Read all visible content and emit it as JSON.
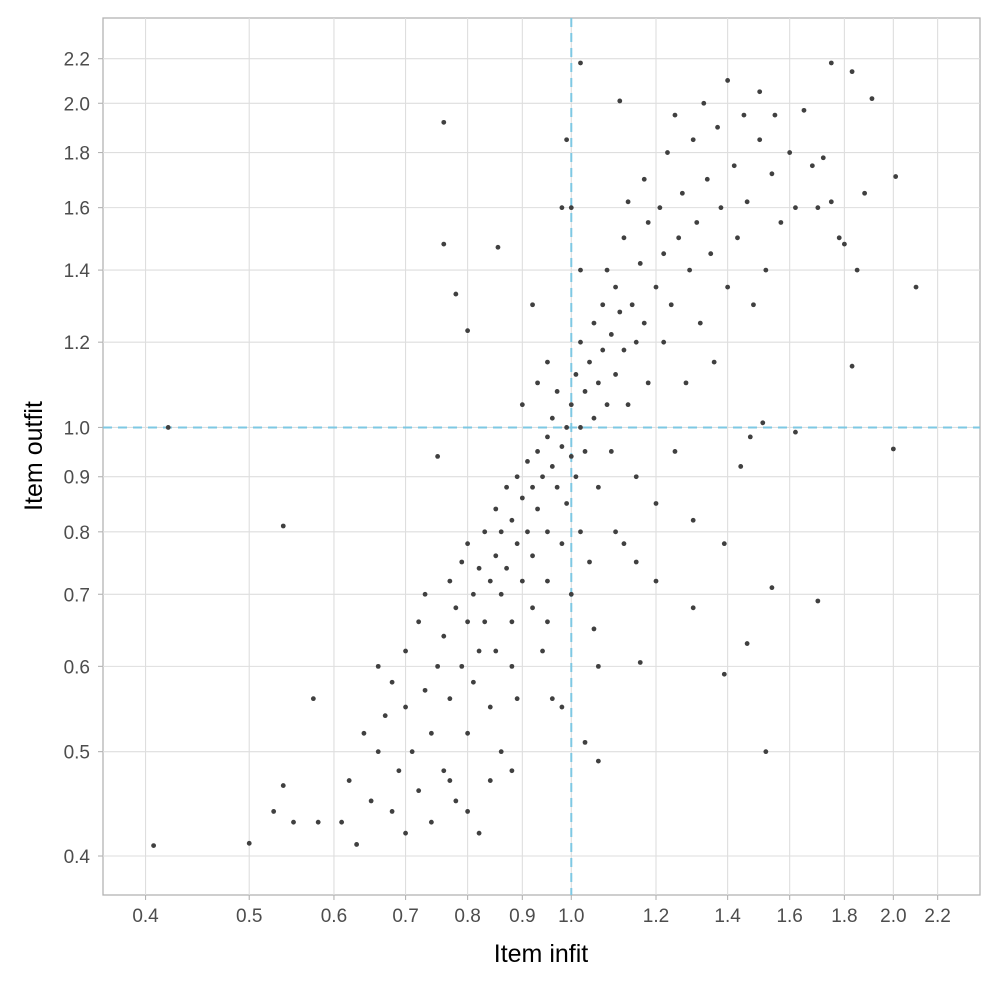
{
  "chart_data": {
    "type": "scatter",
    "title": "",
    "xlabel": "Item infit",
    "ylabel": "Item outfit",
    "x_scale": "log",
    "y_scale": "log",
    "xlim": [
      0.365,
      2.41
    ],
    "ylim": [
      0.368,
      2.4
    ],
    "x_ticks": [
      "0.4",
      "0.5",
      "0.6",
      "0.7",
      "0.8",
      "0.9",
      "1.0",
      "1.2",
      "1.4",
      "1.6",
      "1.8",
      "2.0",
      "2.2"
    ],
    "y_ticks": [
      "0.4",
      "0.5",
      "0.6",
      "0.7",
      "0.8",
      "0.9",
      "1.0",
      "1.2",
      "1.4",
      "1.6",
      "1.8",
      "2.0",
      "2.2"
    ],
    "grid": true,
    "reference_lines": {
      "x": 1.0,
      "y": 1.0,
      "style": "dashed",
      "color": "#7ec8e3"
    },
    "point_color": "#404040",
    "points": [
      [
        0.407,
        0.409
      ],
      [
        0.5,
        0.411
      ],
      [
        0.42,
        1.0
      ],
      [
        0.538,
        0.81
      ],
      [
        0.527,
        0.44
      ],
      [
        0.538,
        0.465
      ],
      [
        0.55,
        0.43
      ],
      [
        0.574,
        0.56
      ],
      [
        0.58,
        0.43
      ],
      [
        0.76,
        1.92
      ],
      [
        0.76,
        1.48
      ],
      [
        0.854,
        1.47
      ],
      [
        0.78,
        1.33
      ],
      [
        0.8,
        1.23
      ],
      [
        1.02,
        2.18
      ],
      [
        1.11,
        2.01
      ],
      [
        1.75,
        2.18
      ],
      [
        1.83,
        2.14
      ],
      [
        1.91,
        2.02
      ],
      [
        2.01,
        1.71
      ],
      [
        2.1,
        1.35
      ],
      [
        2.0,
        0.955
      ],
      [
        1.83,
        1.14
      ],
      [
        1.7,
        0.69
      ],
      [
        1.52,
        0.5
      ],
      [
        1.62,
        0.99
      ],
      [
        1.54,
        0.71
      ],
      [
        1.46,
        0.63
      ],
      [
        1.39,
        0.59
      ],
      [
        1.16,
        0.605
      ],
      [
        1.06,
        0.49
      ],
      [
        1.03,
        0.51
      ],
      [
        1.51,
        1.01
      ],
      [
        1.47,
        0.98
      ],
      [
        0.61,
        0.43
      ],
      [
        0.62,
        0.47
      ],
      [
        0.63,
        0.41
      ],
      [
        0.64,
        0.52
      ],
      [
        0.65,
        0.45
      ],
      [
        0.66,
        0.5
      ],
      [
        0.66,
        0.6
      ],
      [
        0.67,
        0.54
      ],
      [
        0.68,
        0.44
      ],
      [
        0.68,
        0.58
      ],
      [
        0.69,
        0.48
      ],
      [
        0.7,
        0.42
      ],
      [
        0.7,
        0.55
      ],
      [
        0.7,
        0.62
      ],
      [
        0.71,
        0.5
      ],
      [
        0.72,
        0.46
      ],
      [
        0.72,
        0.66
      ],
      [
        0.73,
        0.57
      ],
      [
        0.73,
        0.7
      ],
      [
        0.74,
        0.52
      ],
      [
        0.74,
        0.43
      ],
      [
        0.75,
        0.6
      ],
      [
        0.75,
        0.94
      ],
      [
        0.76,
        0.64
      ],
      [
        0.76,
        0.48
      ],
      [
        0.77,
        0.72
      ],
      [
        0.77,
        0.56
      ],
      [
        0.78,
        0.68
      ],
      [
        0.78,
        0.45
      ],
      [
        0.79,
        0.6
      ],
      [
        0.79,
        0.75
      ],
      [
        0.8,
        0.52
      ],
      [
        0.8,
        0.66
      ],
      [
        0.8,
        0.78
      ],
      [
        0.81,
        0.7
      ],
      [
        0.81,
        0.58
      ],
      [
        0.82,
        0.62
      ],
      [
        0.82,
        0.74
      ],
      [
        0.82,
        0.42
      ],
      [
        0.83,
        0.8
      ],
      [
        0.83,
        0.66
      ],
      [
        0.84,
        0.72
      ],
      [
        0.84,
        0.55
      ],
      [
        0.85,
        0.76
      ],
      [
        0.85,
        0.84
      ],
      [
        0.85,
        0.62
      ],
      [
        0.86,
        0.7
      ],
      [
        0.86,
        0.8
      ],
      [
        0.86,
        0.5
      ],
      [
        0.87,
        0.88
      ],
      [
        0.87,
        0.74
      ],
      [
        0.88,
        0.82
      ],
      [
        0.88,
        0.66
      ],
      [
        0.88,
        0.6
      ],
      [
        0.89,
        0.78
      ],
      [
        0.89,
        0.9
      ],
      [
        0.89,
        0.56
      ],
      [
        0.9,
        0.86
      ],
      [
        0.9,
        0.72
      ],
      [
        0.9,
        1.05
      ],
      [
        0.91,
        0.8
      ],
      [
        0.91,
        0.93
      ],
      [
        0.92,
        0.88
      ],
      [
        0.92,
        0.68
      ],
      [
        0.92,
        0.76
      ],
      [
        0.93,
        0.95
      ],
      [
        0.93,
        0.84
      ],
      [
        0.93,
        1.1
      ],
      [
        0.94,
        0.9
      ],
      [
        0.94,
        0.62
      ],
      [
        0.95,
        0.98
      ],
      [
        0.95,
        0.8
      ],
      [
        0.95,
        0.72
      ],
      [
        0.96,
        0.92
      ],
      [
        0.96,
        1.02
      ],
      [
        0.96,
        0.56
      ],
      [
        0.97,
        0.88
      ],
      [
        0.97,
        1.08
      ],
      [
        0.98,
        0.96
      ],
      [
        0.98,
        0.78
      ],
      [
        0.98,
        1.6
      ],
      [
        0.99,
        1.0
      ],
      [
        0.99,
        0.85
      ],
      [
        0.99,
        1.85
      ],
      [
        1.0,
        0.94
      ],
      [
        1.0,
        1.05
      ],
      [
        1.0,
        0.7
      ],
      [
        1.01,
        1.12
      ],
      [
        1.01,
        0.9
      ],
      [
        1.02,
        1.0
      ],
      [
        1.02,
        1.2
      ],
      [
        1.02,
        0.8
      ],
      [
        1.03,
        1.08
      ],
      [
        1.03,
        0.95
      ],
      [
        1.04,
        1.15
      ],
      [
        1.04,
        0.75
      ],
      [
        1.05,
        1.25
      ],
      [
        1.05,
        1.02
      ],
      [
        1.06,
        1.1
      ],
      [
        1.06,
        0.88
      ],
      [
        1.07,
        1.3
      ],
      [
        1.07,
        1.18
      ],
      [
        1.08,
        1.05
      ],
      [
        1.08,
        1.4
      ],
      [
        1.09,
        1.22
      ],
      [
        1.09,
        0.95
      ],
      [
        1.1,
        1.12
      ],
      [
        1.1,
        1.35
      ],
      [
        1.1,
        0.8
      ],
      [
        1.11,
        1.28
      ],
      [
        1.12,
        1.5
      ],
      [
        1.12,
        1.18
      ],
      [
        1.13,
        1.05
      ],
      [
        1.13,
        1.62
      ],
      [
        1.14,
        1.3
      ],
      [
        1.15,
        1.2
      ],
      [
        1.15,
        0.9
      ],
      [
        1.16,
        1.42
      ],
      [
        1.17,
        1.25
      ],
      [
        1.17,
        1.7
      ],
      [
        1.18,
        1.1
      ],
      [
        1.18,
        1.55
      ],
      [
        1.2,
        1.35
      ],
      [
        1.2,
        0.85
      ],
      [
        1.21,
        1.6
      ],
      [
        1.22,
        1.2
      ],
      [
        1.22,
        1.45
      ],
      [
        1.23,
        1.8
      ],
      [
        1.24,
        1.3
      ],
      [
        1.25,
        0.95
      ],
      [
        1.25,
        1.95
      ],
      [
        1.26,
        1.5
      ],
      [
        1.27,
        1.65
      ],
      [
        1.28,
        1.1
      ],
      [
        1.29,
        1.4
      ],
      [
        1.3,
        1.85
      ],
      [
        1.3,
        0.82
      ],
      [
        1.31,
        1.55
      ],
      [
        1.32,
        1.25
      ],
      [
        1.33,
        2.0
      ],
      [
        1.34,
        1.7
      ],
      [
        1.35,
        1.45
      ],
      [
        1.36,
        1.15
      ],
      [
        1.37,
        1.9
      ],
      [
        1.38,
        1.6
      ],
      [
        1.39,
        0.78
      ],
      [
        1.4,
        2.1
      ],
      [
        1.4,
        1.35
      ],
      [
        1.42,
        1.75
      ],
      [
        1.43,
        1.5
      ],
      [
        1.44,
        0.92
      ],
      [
        1.45,
        1.95
      ],
      [
        1.46,
        1.62
      ],
      [
        1.48,
        1.3
      ],
      [
        1.5,
        2.05
      ],
      [
        1.5,
        1.85
      ],
      [
        1.52,
        1.4
      ],
      [
        1.54,
        1.72
      ],
      [
        1.55,
        1.95
      ],
      [
        1.57,
        1.55
      ],
      [
        1.6,
        1.8
      ],
      [
        1.62,
        1.6
      ],
      [
        1.65,
        1.97
      ],
      [
        1.68,
        1.75
      ],
      [
        1.7,
        1.6
      ],
      [
        1.72,
        1.78
      ],
      [
        1.75,
        1.62
      ],
      [
        1.78,
        1.5
      ],
      [
        1.8,
        1.48
      ],
      [
        1.85,
        1.4
      ],
      [
        1.88,
        1.65
      ],
      [
        1.3,
        0.68
      ],
      [
        1.2,
        0.72
      ],
      [
        1.15,
        0.75
      ],
      [
        1.05,
        0.65
      ],
      [
        0.95,
        0.66
      ],
      [
        0.88,
        0.48
      ],
      [
        0.84,
        0.47
      ],
      [
        0.8,
        0.44
      ],
      [
        0.77,
        0.47
      ],
      [
        1.06,
        0.6
      ],
      [
        0.98,
        0.55
      ],
      [
        1.12,
        0.78
      ],
      [
        0.92,
        1.3
      ],
      [
        0.95,
        1.15
      ],
      [
        1.0,
        1.6
      ],
      [
        1.02,
        1.4
      ]
    ]
  }
}
